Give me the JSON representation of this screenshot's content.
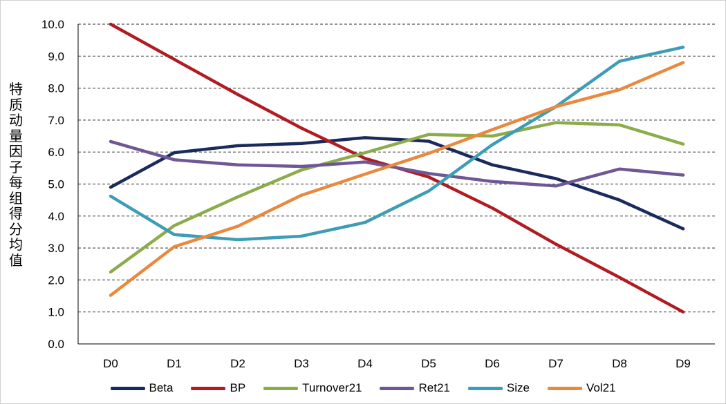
{
  "chart_data": {
    "type": "line",
    "title": "",
    "xlabel": "",
    "ylabel": "特质动量因子每组得分均值",
    "categories": [
      "D0",
      "D1",
      "D2",
      "D3",
      "D4",
      "D5",
      "D6",
      "D7",
      "D8",
      "D9"
    ],
    "ylim": [
      0,
      10
    ],
    "yticks": [
      "0.0",
      "1.0",
      "2.0",
      "3.0",
      "4.0",
      "5.0",
      "6.0",
      "7.0",
      "8.0",
      "9.0",
      "10.0"
    ],
    "grid": "horizontal-dashed",
    "legend_position": "bottom",
    "series": [
      {
        "name": "Beta",
        "color": "#1a2a5c",
        "values": [
          4.9,
          5.98,
          6.2,
          6.27,
          6.45,
          6.34,
          5.6,
          5.17,
          4.5,
          3.6
        ]
      },
      {
        "name": "BP",
        "color": "#b01c22",
        "values": [
          10.0,
          8.9,
          7.8,
          6.75,
          5.8,
          5.22,
          4.25,
          3.12,
          2.08,
          1.0
        ]
      },
      {
        "name": "Turnover21",
        "color": "#8cab4a",
        "values": [
          2.25,
          3.7,
          4.6,
          5.44,
          5.98,
          6.55,
          6.5,
          6.92,
          6.85,
          6.25
        ]
      },
      {
        "name": "Ret21",
        "color": "#6e5794",
        "values": [
          6.33,
          5.76,
          5.6,
          5.55,
          5.69,
          5.33,
          5.08,
          4.94,
          5.47,
          5.28
        ]
      },
      {
        "name": "Size",
        "color": "#3d9db6",
        "values": [
          4.62,
          3.42,
          3.26,
          3.37,
          3.8,
          4.78,
          6.23,
          7.42,
          8.84,
          9.28
        ]
      },
      {
        "name": "Vol21",
        "color": "#e9893e",
        "values": [
          1.52,
          3.04,
          3.68,
          4.65,
          5.31,
          5.96,
          6.7,
          7.42,
          7.95,
          8.8
        ]
      }
    ]
  }
}
